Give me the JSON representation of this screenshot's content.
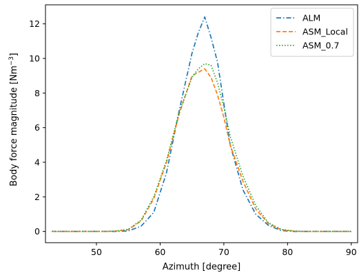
{
  "chart_data": {
    "type": "line",
    "xlabel": "Azimuth [degree]",
    "ylabel": "Body force magnitude [Nm",
    "ylabel_sup": "−3",
    "ylabel_end": "]",
    "xlim": [
      42,
      91
    ],
    "ylim": [
      -0.65,
      13.1
    ],
    "xticks": [
      50,
      60,
      70,
      80,
      90
    ],
    "yticks": [
      0,
      2,
      4,
      6,
      8,
      10,
      12
    ],
    "grid": false,
    "legend": "top-right",
    "series": [
      {
        "name": "ALM",
        "color": "#1f77b4",
        "style": "dashdot",
        "x": [
          43,
          45,
          47,
          49,
          51,
          53,
          55,
          57,
          59,
          61,
          63,
          65,
          66,
          67,
          68,
          69,
          70,
          71,
          73,
          75,
          77,
          79,
          81,
          83,
          85,
          87,
          89,
          90
        ],
        "y": [
          0,
          0,
          0,
          0,
          0,
          0,
          0.03,
          0.3,
          1.1,
          3.4,
          7.0,
          10.3,
          11.5,
          12.4,
          11.2,
          9.8,
          7.4,
          5.0,
          2.4,
          1.0,
          0.35,
          0.05,
          0,
          0,
          0,
          0,
          0,
          0
        ]
      },
      {
        "name": "ASM_Local",
        "color": "#ff7f0e",
        "style": "dashed",
        "x": [
          43,
          45,
          47,
          49,
          51,
          53,
          55,
          57,
          59,
          61,
          63,
          65,
          67,
          68,
          69,
          70,
          71,
          73,
          75,
          77,
          79,
          81,
          83,
          85,
          87,
          89,
          90
        ],
        "y": [
          0,
          0,
          0,
          0,
          0,
          0.02,
          0.1,
          0.6,
          1.9,
          4.0,
          6.8,
          9.0,
          9.4,
          8.9,
          7.9,
          6.6,
          5.0,
          2.9,
          1.3,
          0.45,
          0.1,
          0.02,
          0,
          0,
          0,
          0,
          0
        ]
      },
      {
        "name": "ASM_0.7",
        "color": "#2ca02c",
        "style": "dotted",
        "x": [
          43,
          45,
          47,
          49,
          51,
          53,
          55,
          57,
          59,
          61,
          63,
          65,
          66,
          67,
          68,
          69,
          70,
          71,
          73,
          75,
          77,
          79,
          81,
          83,
          85,
          87,
          89,
          90
        ],
        "y": [
          0,
          0,
          0,
          0,
          0,
          0.02,
          0.12,
          0.65,
          2.0,
          4.1,
          6.9,
          8.9,
          9.4,
          9.7,
          9.6,
          8.6,
          7.2,
          5.5,
          3.2,
          1.5,
          0.5,
          0.12,
          0.02,
          0,
          0,
          0,
          0,
          0
        ]
      }
    ]
  }
}
